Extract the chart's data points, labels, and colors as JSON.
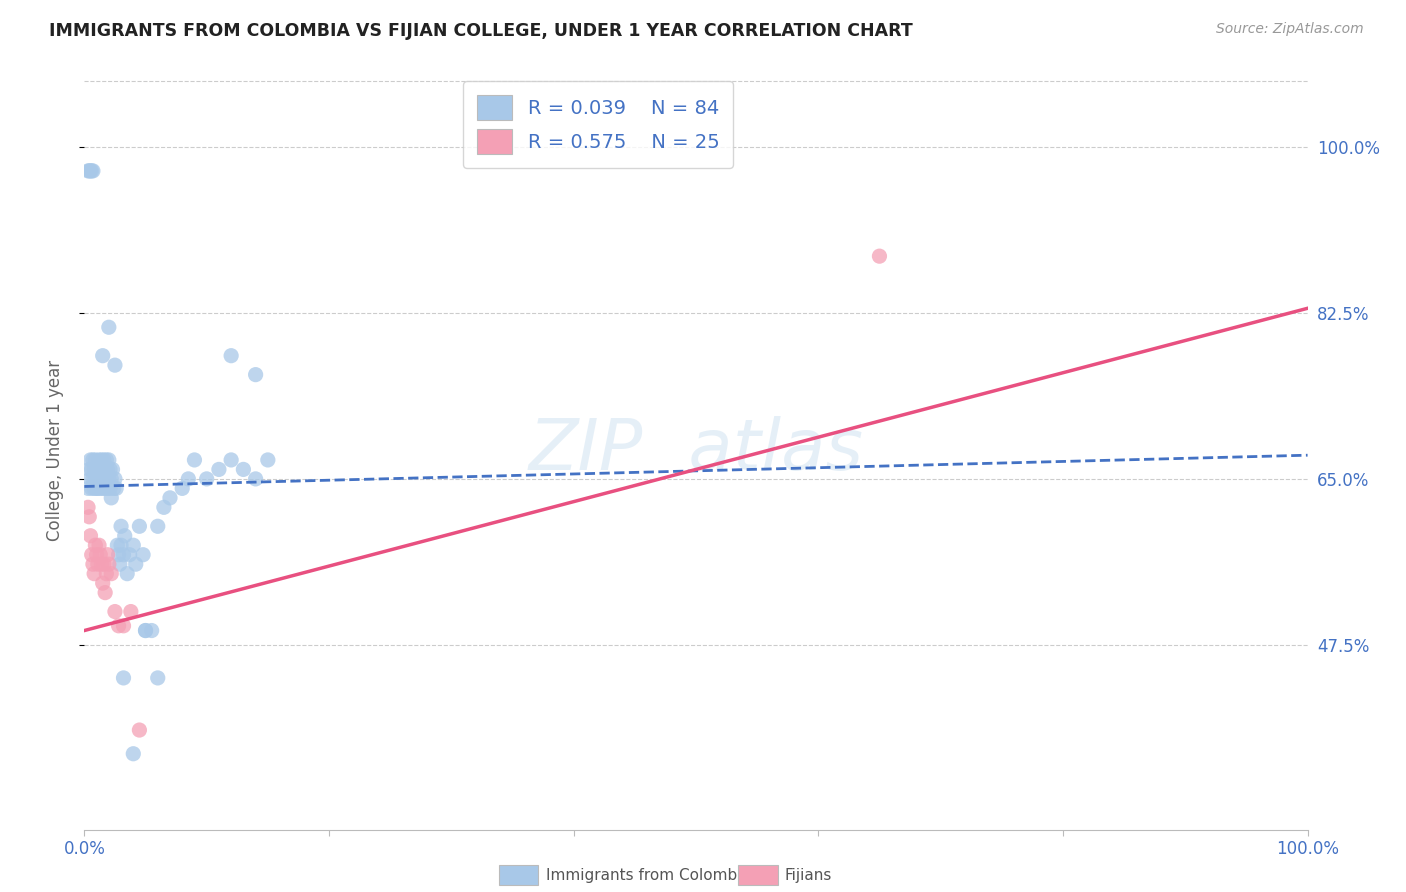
{
  "title": "IMMIGRANTS FROM COLOMBIA VS FIJIAN COLLEGE, UNDER 1 YEAR CORRELATION CHART",
  "source": "Source: ZipAtlas.com",
  "ylabel": "College, Under 1 year",
  "xlim": [
    0,
    1
  ],
  "ylim": [
    0.28,
    1.08
  ],
  "ytick_labels": [
    "47.5%",
    "65.0%",
    "82.5%",
    "100.0%"
  ],
  "ytick_values": [
    0.475,
    0.65,
    0.825,
    1.0
  ],
  "colombia_R": 0.039,
  "colombia_N": 84,
  "fijian_R": 0.575,
  "fijian_N": 25,
  "colombia_color": "#a8c8e8",
  "fijian_color": "#f4a0b5",
  "colombia_line_color": "#4472c4",
  "fijian_line_color": "#e85080",
  "colombia_x": [
    0.003,
    0.004,
    0.005,
    0.005,
    0.006,
    0.006,
    0.007,
    0.007,
    0.008,
    0.008,
    0.009,
    0.009,
    0.01,
    0.01,
    0.01,
    0.011,
    0.011,
    0.012,
    0.012,
    0.013,
    0.013,
    0.014,
    0.014,
    0.015,
    0.015,
    0.016,
    0.016,
    0.017,
    0.017,
    0.018,
    0.018,
    0.019,
    0.019,
    0.02,
    0.02,
    0.021,
    0.021,
    0.022,
    0.022,
    0.023,
    0.024,
    0.025,
    0.026,
    0.027,
    0.028,
    0.029,
    0.03,
    0.03,
    0.032,
    0.033,
    0.035,
    0.037,
    0.04,
    0.042,
    0.045,
    0.048,
    0.05,
    0.055,
    0.06,
    0.065,
    0.07,
    0.08,
    0.085,
    0.09,
    0.1,
    0.11,
    0.12,
    0.13,
    0.14,
    0.15,
    0.003,
    0.004,
    0.005,
    0.006,
    0.007,
    0.015,
    0.02,
    0.025,
    0.12,
    0.14,
    0.05,
    0.06,
    0.032,
    0.04
  ],
  "colombia_y": [
    0.64,
    0.66,
    0.65,
    0.67,
    0.64,
    0.66,
    0.65,
    0.67,
    0.64,
    0.66,
    0.65,
    0.67,
    0.64,
    0.66,
    0.65,
    0.64,
    0.66,
    0.65,
    0.67,
    0.64,
    0.66,
    0.65,
    0.67,
    0.64,
    0.66,
    0.65,
    0.67,
    0.64,
    0.66,
    0.65,
    0.67,
    0.64,
    0.66,
    0.65,
    0.67,
    0.64,
    0.66,
    0.65,
    0.63,
    0.66,
    0.64,
    0.65,
    0.64,
    0.58,
    0.57,
    0.56,
    0.58,
    0.6,
    0.57,
    0.59,
    0.55,
    0.57,
    0.58,
    0.56,
    0.6,
    0.57,
    0.49,
    0.49,
    0.6,
    0.62,
    0.63,
    0.64,
    0.65,
    0.67,
    0.65,
    0.66,
    0.67,
    0.66,
    0.65,
    0.67,
    0.975,
    0.975,
    0.975,
    0.975,
    0.975,
    0.78,
    0.81,
    0.77,
    0.78,
    0.76,
    0.49,
    0.44,
    0.44,
    0.36
  ],
  "fijian_x": [
    0.003,
    0.004,
    0.005,
    0.006,
    0.007,
    0.008,
    0.009,
    0.01,
    0.011,
    0.012,
    0.013,
    0.014,
    0.015,
    0.016,
    0.017,
    0.018,
    0.019,
    0.02,
    0.022,
    0.025,
    0.028,
    0.032,
    0.038,
    0.045,
    0.65
  ],
  "fijian_y": [
    0.62,
    0.61,
    0.59,
    0.57,
    0.56,
    0.55,
    0.58,
    0.57,
    0.56,
    0.58,
    0.57,
    0.56,
    0.54,
    0.56,
    0.53,
    0.55,
    0.57,
    0.56,
    0.55,
    0.51,
    0.495,
    0.495,
    0.51,
    0.385,
    0.885
  ],
  "colombia_trend_x": [
    0.0,
    1.0
  ],
  "colombia_trend_y": [
    0.642,
    0.675
  ],
  "fijian_trend_x": [
    0.0,
    1.0
  ],
  "fijian_trend_y": [
    0.49,
    0.83
  ],
  "grid_color": "#cccccc",
  "background_color": "#ffffff",
  "title_color": "#222222",
  "axis_label_color": "#666666",
  "right_tick_color": "#4472c4",
  "bottom_tick_color": "#4472c4"
}
